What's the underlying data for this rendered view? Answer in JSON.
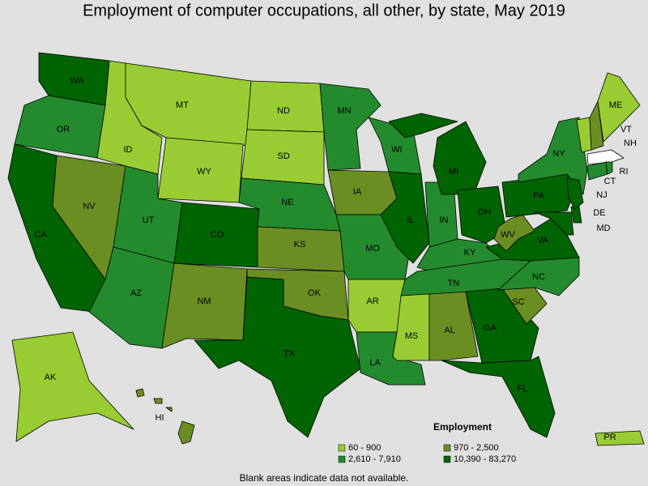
{
  "title": "Employment of computer occupations, all other, by state, May 2019",
  "legend": {
    "title": "Employment",
    "items": [
      {
        "label": "60 - 900",
        "color": "#99cc33"
      },
      {
        "label": "970 - 2,500",
        "color": "#6b8e23"
      },
      {
        "label": "2,610 - 7,910",
        "color": "#238b2e"
      },
      {
        "label": "10,390 - 83,270",
        "color": "#006400"
      }
    ]
  },
  "footnote": "Blank areas indicate data not available.",
  "states": [
    {
      "label": "WA",
      "class": 3
    },
    {
      "label": "OR",
      "class": 2
    },
    {
      "label": "CA",
      "class": 3
    },
    {
      "label": "NV",
      "class": 1
    },
    {
      "label": "ID",
      "class": 0
    },
    {
      "label": "MT",
      "class": 0
    },
    {
      "label": "WY",
      "class": 0
    },
    {
      "label": "UT",
      "class": 2
    },
    {
      "label": "AZ",
      "class": 2
    },
    {
      "label": "CO",
      "class": 3
    },
    {
      "label": "NM",
      "class": 1
    },
    {
      "label": "ND",
      "class": 0
    },
    {
      "label": "SD",
      "class": 0
    },
    {
      "label": "NE",
      "class": 2
    },
    {
      "label": "KS",
      "class": 1
    },
    {
      "label": "OK",
      "class": 1
    },
    {
      "label": "TX",
      "class": 3
    },
    {
      "label": "MN",
      "class": 2
    },
    {
      "label": "IA",
      "class": 1
    },
    {
      "label": "MO",
      "class": 2
    },
    {
      "label": "AR",
      "class": 0
    },
    {
      "label": "LA",
      "class": 2
    },
    {
      "label": "MS",
      "class": 0
    },
    {
      "label": "AL",
      "class": 1
    },
    {
      "label": "WI",
      "class": 2
    },
    {
      "label": "IL",
      "class": 3
    },
    {
      "label": "IN",
      "class": 2
    },
    {
      "label": "MI",
      "class": 3
    },
    {
      "label": "OH",
      "class": 3
    },
    {
      "label": "KY",
      "class": 2
    },
    {
      "label": "TN",
      "class": 2
    },
    {
      "label": "GA",
      "class": 3
    },
    {
      "label": "FL",
      "class": 3
    },
    {
      "label": "SC",
      "class": 1
    },
    {
      "label": "NC",
      "class": 2
    },
    {
      "label": "VA",
      "class": 3
    },
    {
      "label": "WV",
      "class": 1
    },
    {
      "label": "PA",
      "class": 3
    },
    {
      "label": "NY",
      "class": 2
    },
    {
      "label": "MD",
      "class": 3
    },
    {
      "label": "DE",
      "class": 3
    },
    {
      "label": "NJ",
      "class": 3
    },
    {
      "label": "CT",
      "class": 2
    },
    {
      "label": "RI",
      "class": 2
    },
    {
      "label": "VT",
      "class": 0
    },
    {
      "label": "NH",
      "class": 1
    },
    {
      "label": "ME",
      "class": 0
    },
    {
      "label": "AK",
      "class": 0
    },
    {
      "label": "HI",
      "class": 1
    },
    {
      "label": "PR",
      "class": 0
    }
  ]
}
